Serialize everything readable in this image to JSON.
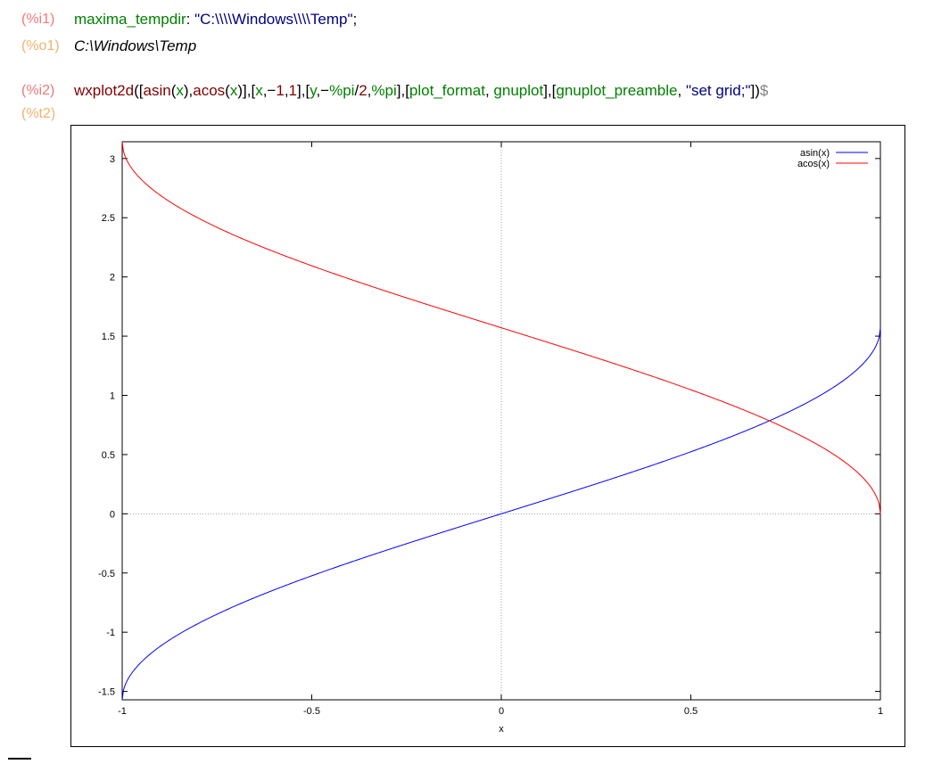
{
  "cells": [
    {
      "label": "(%i1)",
      "kind": "input",
      "tokens": [
        {
          "t": "maxima_tempdir",
          "c": "var"
        },
        {
          "t": ": ",
          "c": "op"
        },
        {
          "t": "\"C:\\\\\\\\Windows\\\\\\\\Temp\"",
          "c": "str"
        },
        {
          "t": ";",
          "c": "op"
        }
      ]
    },
    {
      "label": "(%o1)",
      "kind": "output",
      "text": "C:\\Windows\\Temp"
    },
    {
      "label": "(%i2)",
      "kind": "input",
      "tokens": [
        {
          "t": "wxplot2d",
          "c": "num"
        },
        {
          "t": "([",
          "c": "op"
        },
        {
          "t": "asin",
          "c": "num"
        },
        {
          "t": "(",
          "c": "op"
        },
        {
          "t": "x",
          "c": "var"
        },
        {
          "t": "),",
          "c": "op"
        },
        {
          "t": "acos",
          "c": "num"
        },
        {
          "t": "(",
          "c": "op"
        },
        {
          "t": "x",
          "c": "var"
        },
        {
          "t": ")],[",
          "c": "op"
        },
        {
          "t": "x",
          "c": "var"
        },
        {
          "t": ",−",
          "c": "op"
        },
        {
          "t": "1",
          "c": "num"
        },
        {
          "t": ",",
          "c": "op"
        },
        {
          "t": "1",
          "c": "num"
        },
        {
          "t": "],[",
          "c": "op"
        },
        {
          "t": "y",
          "c": "var"
        },
        {
          "t": ",−",
          "c": "op"
        },
        {
          "t": "%pi",
          "c": "var"
        },
        {
          "t": "/",
          "c": "op"
        },
        {
          "t": "2",
          "c": "num"
        },
        {
          "t": ",",
          "c": "op"
        },
        {
          "t": "%pi",
          "c": "var"
        },
        {
          "t": "],[",
          "c": "op"
        },
        {
          "t": "plot_format",
          "c": "var"
        },
        {
          "t": ", ",
          "c": "op"
        },
        {
          "t": "gnuplot",
          "c": "var"
        },
        {
          "t": "],[",
          "c": "op"
        },
        {
          "t": "gnuplot_preamble",
          "c": "var"
        },
        {
          "t": ", ",
          "c": "op"
        },
        {
          "t": "\"set grid;\"",
          "c": "str"
        },
        {
          "t": "])",
          "c": "op"
        },
        {
          "t": "$",
          "c": "end"
        }
      ]
    },
    {
      "label": "(%t2)",
      "kind": "plot-label"
    }
  ],
  "colors": {
    "asin": "#0000ff",
    "acos": "#ff0000"
  },
  "chart_data": {
    "type": "line",
    "title": "",
    "xlabel": "x",
    "ylabel": "",
    "xlim": [
      -1,
      1
    ],
    "ylim": [
      -1.5708,
      3.1416
    ],
    "grid": true,
    "legend_position": "top-right",
    "x_ticks": [
      "-1",
      "-0.5",
      "0",
      "0.5",
      "1"
    ],
    "y_ticks": [
      "-1.5",
      "-1",
      "-0.5",
      "0",
      "0.5",
      "1",
      "1.5",
      "2",
      "2.5",
      "3"
    ],
    "series": [
      {
        "name": "asin(x)",
        "color": "#0000ff",
        "function": "asin"
      },
      {
        "name": "acos(x)",
        "color": "#ff0000",
        "function": "acos"
      }
    ]
  }
}
